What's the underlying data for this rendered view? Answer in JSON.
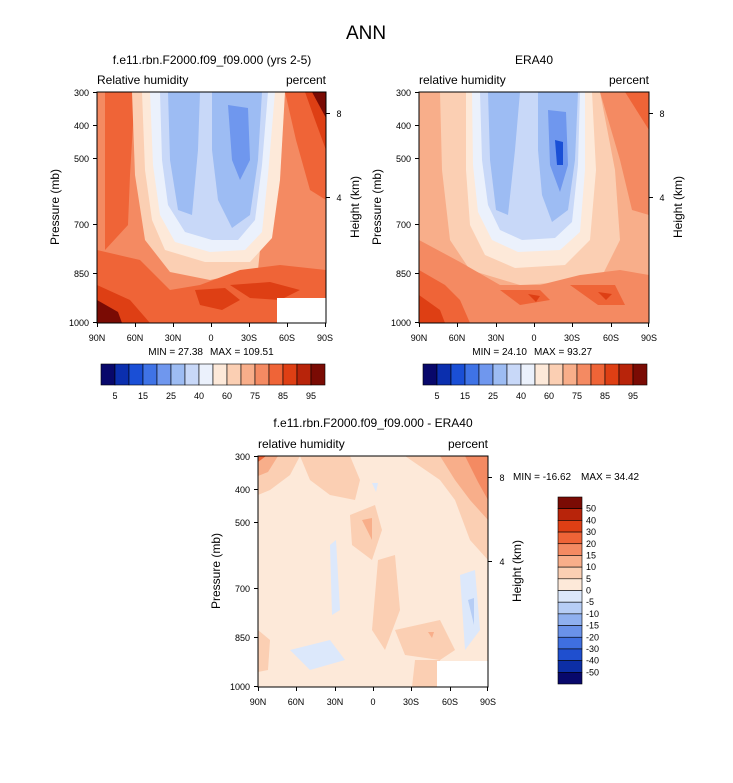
{
  "main_title": "ANN",
  "chart_data": [
    {
      "type": "heatmap",
      "title": "f.e11.rbn.F2000.f09_f09.000 (yrs 2-5)",
      "subtitle_left": "Relative humidity",
      "subtitle_right": "percent",
      "ylabel": "Pressure (mb)",
      "ylabel_right": "Height (km)",
      "x_ticks": [
        "90N",
        "60N",
        "30N",
        "0",
        "30S",
        "60S",
        "90S"
      ],
      "y_ticks": [
        "300",
        "400",
        "500",
        "700",
        "850",
        "1000"
      ],
      "height_ticks": [
        "8",
        "4"
      ],
      "min_label": "MIN = 27.38",
      "max_label": "MAX = 109.51",
      "colorbar": "full"
    },
    {
      "type": "heatmap",
      "title": "ERA40",
      "subtitle_left": "relative humidity",
      "subtitle_right": "percent",
      "ylabel": "Pressure (mb)",
      "ylabel_right": "Height (km)",
      "x_ticks": [
        "90N",
        "60N",
        "30N",
        "0",
        "30S",
        "60S",
        "90S"
      ],
      "y_ticks": [
        "300",
        "400",
        "500",
        "700",
        "850",
        "1000"
      ],
      "height_ticks": [
        "8",
        "4"
      ],
      "min_label": "MIN = 24.10",
      "max_label": "MAX = 93.27",
      "colorbar": "full"
    },
    {
      "type": "heatmap",
      "title": "f.e11.rbn.F2000.f09_f09.000 - ERA40",
      "subtitle_left": "relative humidity",
      "subtitle_right": "percent",
      "ylabel": "Pressure (mb)",
      "ylabel_right": "Height (km)",
      "x_ticks": [
        "90N",
        "60N",
        "30N",
        "0",
        "30S",
        "60S",
        "90S"
      ],
      "y_ticks": [
        "300",
        "400",
        "500",
        "700",
        "850",
        "1000"
      ],
      "height_ticks": [
        "8",
        "4"
      ],
      "min_label": "MIN = -16.62",
      "max_label": "MAX = 34.42",
      "colorbar": "diff"
    }
  ],
  "colorbar_full": {
    "labels": [
      "5",
      "15",
      "25",
      "40",
      "60",
      "75",
      "85",
      "95"
    ],
    "colors": [
      "#08086b",
      "#0b2fae",
      "#1a4fd6",
      "#3f73e6",
      "#6f97ee",
      "#9dbcf3",
      "#c8d8f8",
      "#ebf1fc",
      "#fde9d9",
      "#fbcfb3",
      "#f8ae8a",
      "#f48a62",
      "#ef6437",
      "#de3f14",
      "#b8240a",
      "#7a0b04"
    ]
  },
  "colorbar_diff": {
    "labels": [
      "50",
      "40",
      "30",
      "20",
      "15",
      "10",
      "5",
      "0",
      "-5",
      "-10",
      "-15",
      "-20",
      "-30",
      "-40",
      "-50"
    ],
    "colors": [
      "#7a0b04",
      "#b8240a",
      "#de3f14",
      "#ef6437",
      "#f48a62",
      "#f8ae8a",
      "#fbcfb3",
      "#fde9d9",
      "#dce8fb",
      "#b6cdf5",
      "#8fb0ef",
      "#6a92e9",
      "#3f6fe0",
      "#1f4fcf",
      "#0c2ea5",
      "#08086b"
    ]
  },
  "palette": {
    "deep_blue": "#6f97ee",
    "mid_blue": "#9dbcf3",
    "light_blue": "#c8d8f8",
    "pale_blue": "#ebf1fc",
    "cream": "#fde9d9",
    "light_orange": "#fbcfb3",
    "orange": "#f8ae8a",
    "dark_orange": "#f48a62",
    "red_orange": "#ef6437",
    "red": "#de3f14",
    "dark_red": "#b8240a",
    "darkest_red": "#7a0b04"
  }
}
